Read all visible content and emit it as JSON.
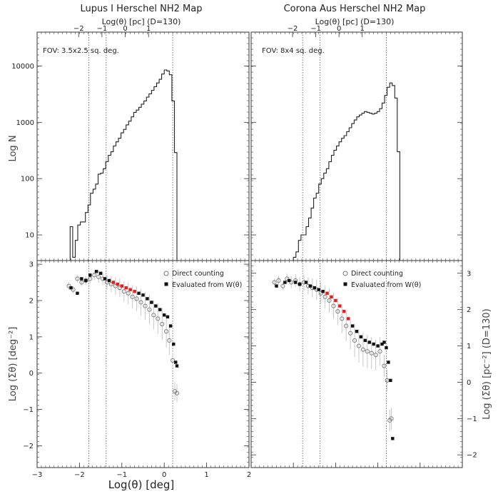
{
  "chart_data": [
    {
      "type": "line",
      "panel": "top-left",
      "title": "Lupus I Herschel NH2 Map",
      "top_axis_label": "Log(θ) [pc] (D=130)",
      "top_ticks": [
        "−2",
        "−1",
        "0",
        "1"
      ],
      "annotation": "FOV: 3.5x2.5 sq. deg.",
      "ylabel": "Log N",
      "yscale": "log",
      "ylim": [
        3.5,
        40000
      ],
      "yticks": [
        10,
        100,
        1000,
        10000
      ],
      "ytick_labels": [
        "10",
        "100",
        "1000",
        "10000"
      ],
      "xlim": [
        -3,
        2
      ],
      "vlines": [
        -1.78,
        -1.37,
        0.2
      ],
      "series": [
        {
          "name": "histogram",
          "step": true,
          "edges": [
            -2.22,
            -2.16,
            -2.1,
            -2.04,
            -1.98,
            -1.92,
            -1.86,
            -1.8,
            -1.74,
            -1.68,
            -1.62,
            -1.56,
            -1.5,
            -1.44,
            -1.38,
            -1.32,
            -1.26,
            -1.2,
            -1.14,
            -1.08,
            -1.02,
            -0.96,
            -0.9,
            -0.84,
            -0.78,
            -0.72,
            -0.66,
            -0.6,
            -0.54,
            -0.48,
            -0.42,
            -0.36,
            -0.3,
            -0.24,
            -0.18,
            -0.12,
            -0.06,
            0.0,
            0.06,
            0.12,
            0.18,
            0.24,
            0.3
          ],
          "values": [
            14,
            4,
            8,
            15,
            17,
            17,
            25,
            34,
            55,
            65,
            80,
            120,
            125,
            150,
            200,
            260,
            300,
            380,
            450,
            520,
            650,
            750,
            900,
            1050,
            1250,
            1500,
            1650,
            1850,
            2100,
            2400,
            2800,
            3200,
            3700,
            4300,
            5000,
            5800,
            7200,
            8500,
            8200,
            7000,
            2400,
            290
          ]
        }
      ]
    },
    {
      "type": "line",
      "panel": "top-right",
      "title": "Corona Aus Herschel NH2 Map",
      "top_axis_label": "Log(θ) [pc] (D=130)",
      "top_ticks": [
        "−2",
        "−1",
        "0",
        "1"
      ],
      "annotation": "FOV: 8x4 sq. deg.",
      "yscale": "log",
      "ylim": [
        3.5,
        40000
      ],
      "xlim": [
        -3,
        2
      ],
      "vlines": [
        -1.78,
        -1.37,
        0.2
      ],
      "series": [
        {
          "name": "histogram",
          "step": true,
          "edges": [
            -2.22,
            -2.16,
            -2.1,
            -2.04,
            -1.98,
            -1.92,
            -1.86,
            -1.8,
            -1.74,
            -1.68,
            -1.62,
            -1.56,
            -1.5,
            -1.44,
            -1.38,
            -1.32,
            -1.26,
            -1.2,
            -1.14,
            -1.08,
            -1.02,
            -0.96,
            -0.9,
            -0.84,
            -0.78,
            -0.72,
            -0.66,
            -0.6,
            -0.54,
            -0.48,
            -0.42,
            -0.36,
            -0.3,
            -0.24,
            -0.18,
            -0.12,
            -0.06,
            0.0,
            0.06,
            0.12,
            0.18,
            0.24,
            0.3
          ],
          "values": [
            4,
            5,
            8,
            10,
            10,
            14,
            20,
            30,
            45,
            55,
            80,
            100,
            125,
            150,
            200,
            260,
            320,
            380,
            450,
            520,
            580,
            680,
            800,
            950,
            1100,
            1250,
            1350,
            1450,
            1550,
            1500,
            1450,
            1400,
            1450,
            1550,
            1750,
            2200,
            3000,
            4200,
            5000,
            4500,
            2700,
            300
          ],
          "x_offset": 0.22
        }
      ]
    },
    {
      "type": "scatter",
      "panel": "bottom-left",
      "ylabel": "Log (Σθ) [deg⁻²]",
      "xlabel": "Log(θ) [deg]",
      "xlim": [
        -3,
        2
      ],
      "ylim": [
        -2.6,
        3.1
      ],
      "xticks": [
        -3,
        -2,
        -1,
        0,
        1,
        2
      ],
      "xtick_labels": [
        "−3",
        "−2",
        "−1",
        "0",
        "1",
        "2"
      ],
      "yticks": [
        -2,
        -1,
        0,
        1,
        2,
        3
      ],
      "ytick_labels": [
        "−2",
        "−1",
        "0",
        "1",
        "2",
        "3"
      ],
      "vlines": [
        -1.78,
        -1.37,
        0.2
      ],
      "legend": [
        "Direct counting",
        "Evaluated from W(θ)"
      ],
      "series": [
        {
          "name": "Direct counting",
          "x": [
            -2.25,
            -2.15,
            -2.05,
            -1.95,
            -1.85,
            -1.75,
            -1.65,
            -1.55,
            -1.45,
            -1.35,
            -1.25,
            -1.15,
            -1.05,
            -0.95,
            -0.85,
            -0.75,
            -0.65,
            -0.55,
            -0.45,
            -0.35,
            -0.25,
            -0.15,
            -0.05,
            0.05,
            0.12,
            0.2,
            0.25,
            0.3
          ],
          "y": [
            2.4,
            2.3,
            2.6,
            2.5,
            2.55,
            2.6,
            2.7,
            2.65,
            2.6,
            2.5,
            2.45,
            2.4,
            2.35,
            2.25,
            2.2,
            2.1,
            2.05,
            1.95,
            1.85,
            1.75,
            1.6,
            1.5,
            1.35,
            1.15,
            0.9,
            0.35,
            -0.5,
            -0.55
          ],
          "err": [
            0.1,
            0.1,
            0.1,
            0.1,
            0.12,
            0.12,
            0.14,
            0.16,
            0.18,
            0.2,
            0.22,
            0.24,
            0.26,
            0.28,
            0.3,
            0.32,
            0.34,
            0.36,
            0.38,
            0.4,
            0.4,
            0.42,
            0.44,
            0.44,
            0.4,
            0.2,
            0.25,
            0.25
          ]
        },
        {
          "name": "Evaluated from W(θ)",
          "x": [
            -2.2,
            -2.05,
            -1.95,
            -1.85,
            -1.75,
            -1.6,
            -1.5,
            -1.4,
            -1.3,
            -1.2,
            -1.1,
            -1.0,
            -0.9,
            -0.8,
            -0.7,
            -0.6,
            -0.5,
            -0.4,
            -0.3,
            -0.2,
            -0.1,
            0.0,
            0.08,
            0.15,
            0.22,
            0.27,
            0.3
          ],
          "y": [
            2.35,
            2.2,
            2.6,
            2.55,
            2.7,
            2.8,
            2.75,
            2.6,
            2.55,
            2.5,
            2.45,
            2.4,
            2.35,
            2.3,
            2.25,
            2.2,
            2.15,
            2.05,
            1.95,
            1.85,
            1.75,
            1.6,
            1.55,
            1.3,
            0.8,
            0.3,
            0.2
          ]
        }
      ]
    },
    {
      "type": "scatter",
      "panel": "bottom-right",
      "right_ylabel": "Log (Σθ) [pc⁻²] (D=130)",
      "xlim": [
        -3,
        2
      ],
      "ylim": [
        -2.6,
        3.1
      ],
      "right_yticks": [
        -2,
        -1,
        0,
        1,
        2,
        3
      ],
      "right_ytick_labels": [
        "−2",
        "−1",
        "0",
        "1",
        "2",
        "3"
      ],
      "vlines": [
        -1.78,
        -1.37,
        0.2
      ],
      "legend": [
        "Direct counting",
        "Evaluated from W(θ)"
      ],
      "series": [
        {
          "name": "Direct counting",
          "x": [
            -2.45,
            -2.35,
            -2.25,
            -2.15,
            -2.05,
            -1.95,
            -1.85,
            -1.75,
            -1.65,
            -1.55,
            -1.45,
            -1.35,
            -1.25,
            -1.15,
            -1.05,
            -0.95,
            -0.85,
            -0.75,
            -0.65,
            -0.55,
            -0.45,
            -0.35,
            -0.25,
            -0.15,
            -0.05,
            0.05,
            0.15,
            0.22,
            0.28,
            0.32
          ],
          "y": [
            2.5,
            2.55,
            2.4,
            2.6,
            2.5,
            2.55,
            2.45,
            2.5,
            2.4,
            2.35,
            2.3,
            2.2,
            2.1,
            2.0,
            1.85,
            1.7,
            1.5,
            1.3,
            1.1,
            0.9,
            0.75,
            0.65,
            0.6,
            0.55,
            0.5,
            0.6,
            0.2,
            -0.2,
            -1.3,
            -1.25
          ],
          "err": [
            0.1,
            0.12,
            0.12,
            0.14,
            0.16,
            0.18,
            0.2,
            0.22,
            0.24,
            0.26,
            0.28,
            0.3,
            0.32,
            0.34,
            0.36,
            0.38,
            0.4,
            0.42,
            0.44,
            0.46,
            0.46,
            0.46,
            0.46,
            0.44,
            0.42,
            0.4,
            0.3,
            0.3,
            0.3,
            0.3
          ]
        },
        {
          "name": "Evaluated from W(θ)",
          "x": [
            -2.4,
            -2.2,
            -2.1,
            -1.95,
            -1.85,
            -1.7,
            -1.6,
            -1.5,
            -1.4,
            -1.3,
            -1.2,
            -1.1,
            -1.0,
            -0.9,
            -0.8,
            -0.7,
            -0.6,
            -0.5,
            -0.4,
            -0.3,
            -0.2,
            -0.1,
            0.0,
            0.1,
            0.15,
            0.2,
            0.25,
            0.3,
            0.35
          ],
          "y": [
            2.4,
            2.5,
            2.55,
            2.5,
            2.45,
            2.5,
            2.4,
            2.35,
            2.3,
            2.25,
            2.2,
            2.1,
            2.0,
            1.85,
            1.7,
            1.5,
            1.3,
            1.15,
            1.0,
            0.9,
            0.85,
            0.8,
            0.75,
            0.8,
            0.85,
            0.7,
            0.3,
            -0.2,
            -1.8
          ]
        }
      ]
    }
  ],
  "axes": {
    "shared_xlabel": "Log(θ) [deg]",
    "left_top_ylabel": "Log N",
    "left_bottom_ylabel": "Log (Σθ) [deg⁻²]",
    "right_bottom_ylabel": "Log (Σθ) [pc⁻²] (D=130)"
  },
  "colors": {
    "line": "#222222",
    "open_marker": "#777777",
    "filled_marker": "#111111",
    "red_marker": "#e02020",
    "errorbar": "#c8c8c8",
    "dotted": "#555555"
  }
}
